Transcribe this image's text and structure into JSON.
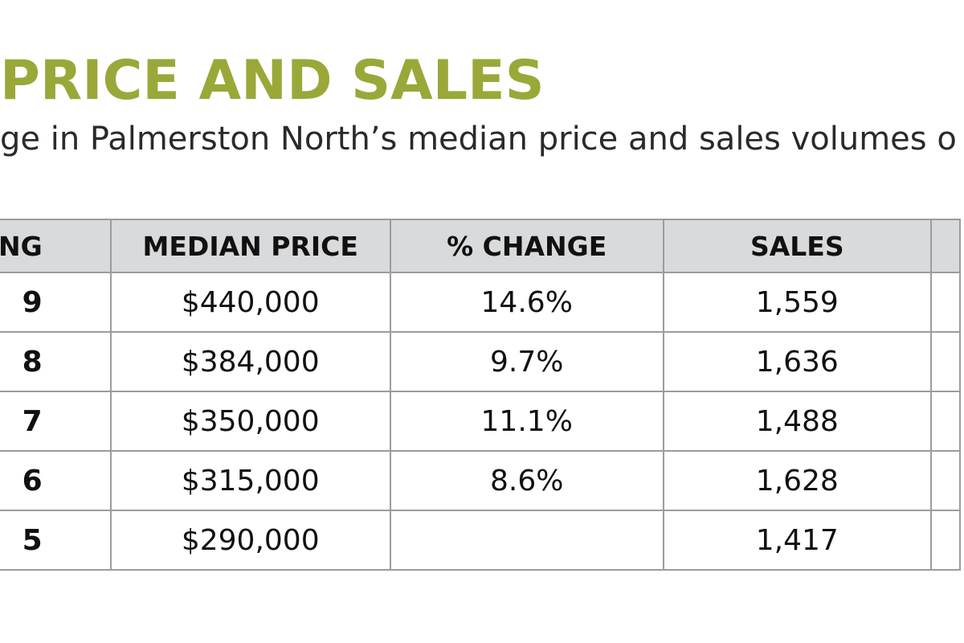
{
  "title": "PRICE AND SALES",
  "subtitle": "ge in Palmerston North’s median price and sales volumes o",
  "chart_data": {
    "type": "table",
    "columns": [
      "NG",
      "MEDIAN PRICE",
      "% CHANGE",
      "SALES",
      ""
    ],
    "rows": [
      [
        "9",
        "$440,000",
        "14.6%",
        "1,559",
        ""
      ],
      [
        "8",
        "$384,000",
        "9.7%",
        "1,636",
        ""
      ],
      [
        "7",
        "$350,000",
        "11.1%",
        "1,488",
        ""
      ],
      [
        "6",
        "$315,000",
        "8.6%",
        "1,628",
        ""
      ],
      [
        "5",
        "$290,000",
        "",
        "1,417",
        ""
      ]
    ]
  }
}
